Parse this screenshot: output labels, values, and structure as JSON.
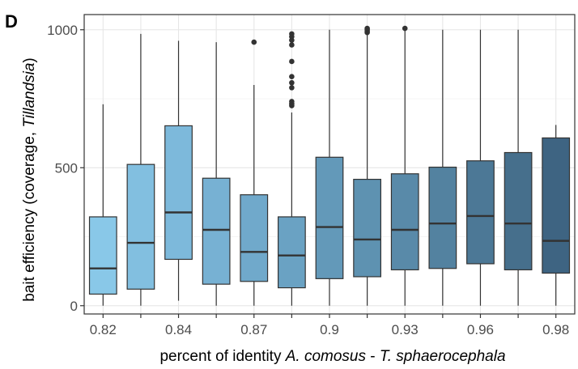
{
  "panel_label": "D",
  "chart_data": {
    "type": "box",
    "ylabel_parts": [
      "bait efficiency (coverage, ",
      "Tillandsia",
      ")"
    ],
    "xlabel_parts": [
      "percent of identity ",
      "A. comosus",
      " - ",
      "T. sphaerocephala"
    ],
    "ylim": [
      -30,
      1055
    ],
    "yticks": [
      0,
      500,
      1000
    ],
    "grid": true,
    "legend": "none",
    "xtick_labels": [
      "0.82",
      "0.84",
      "0.87",
      "0.9",
      "0.93",
      "0.96",
      "0.98"
    ],
    "groups": [
      {
        "min": 0,
        "q1": 42,
        "median": 135,
        "q3": 322,
        "max": 730,
        "outliers": [],
        "color": "#89c8e8"
      },
      {
        "min": 0,
        "q1": 60,
        "median": 228,
        "q3": 512,
        "max": 985,
        "outliers": [],
        "color": "#82bfe0"
      },
      {
        "min": 18,
        "q1": 168,
        "median": 338,
        "q3": 652,
        "max": 960,
        "outliers": [],
        "color": "#7db9db"
      },
      {
        "min": 0,
        "q1": 78,
        "median": 275,
        "q3": 462,
        "max": 955,
        "outliers": [],
        "color": "#77b1d3"
      },
      {
        "min": 0,
        "q1": 88,
        "median": 195,
        "q3": 402,
        "max": 800,
        "outliers": [
          955
        ],
        "color": "#70a9cb"
      },
      {
        "min": 0,
        "q1": 65,
        "median": 182,
        "q3": 322,
        "max": 700,
        "outliers": [
          725,
          732,
          740,
          790,
          808,
          830,
          885,
          945,
          962,
          975,
          985
        ],
        "color": "#6aa2c3"
      },
      {
        "min": 0,
        "q1": 98,
        "median": 285,
        "q3": 538,
        "max": 1000,
        "outliers": [],
        "color": "#6399b9"
      },
      {
        "min": 0,
        "q1": 105,
        "median": 240,
        "q3": 458,
        "max": 985,
        "outliers": [
          990,
          995,
          1000,
          1005
        ],
        "color": "#5e92b1"
      },
      {
        "min": 0,
        "q1": 130,
        "median": 275,
        "q3": 478,
        "max": 1000,
        "outliers": [
          1005
        ],
        "color": "#598aa9"
      },
      {
        "min": 0,
        "q1": 135,
        "median": 298,
        "q3": 502,
        "max": 1000,
        "outliers": [],
        "color": "#5382a0"
      },
      {
        "min": 0,
        "q1": 152,
        "median": 325,
        "q3": 525,
        "max": 1000,
        "outliers": [],
        "color": "#4c7896"
      },
      {
        "min": 0,
        "q1": 130,
        "median": 298,
        "q3": 555,
        "max": 1000,
        "outliers": [],
        "color": "#466f8c"
      },
      {
        "min": 0,
        "q1": 118,
        "median": 235,
        "q3": 608,
        "max": 655,
        "outliers": [],
        "color": "#3e6482"
      }
    ]
  }
}
